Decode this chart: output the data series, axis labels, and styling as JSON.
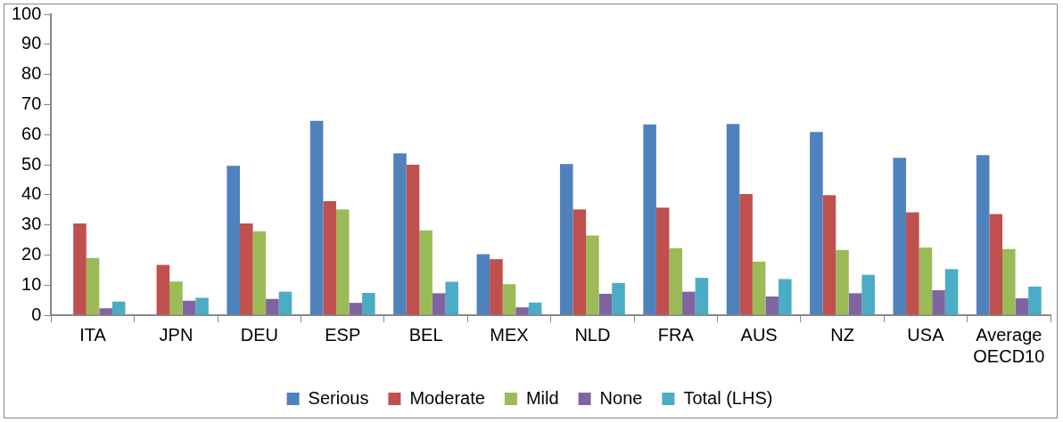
{
  "chart_data": {
    "type": "bar",
    "categories": [
      "ITA",
      "JPN",
      "DEU",
      "ESP",
      "BEL",
      "MEX",
      "NLD",
      "FRA",
      "AUS",
      "NZ",
      "USA",
      "Average OECD10"
    ],
    "series": [
      {
        "name": "Serious",
        "color": "#4f81bd",
        "values": [
          null,
          null,
          49.6,
          64.6,
          53.8,
          20.3,
          50.2,
          63.4,
          63.5,
          60.9,
          52.3,
          53.2
        ]
      },
      {
        "name": "Moderate",
        "color": "#c0504d",
        "values": [
          30.5,
          16.7,
          30.5,
          37.9,
          50.0,
          18.6,
          35.1,
          35.7,
          40.2,
          39.9,
          34.2,
          33.6
        ]
      },
      {
        "name": "Mild",
        "color": "#9bbb59",
        "values": [
          19.0,
          11.2,
          27.9,
          35.1,
          28.2,
          10.3,
          26.5,
          22.3,
          17.8,
          21.7,
          22.5,
          22.0
        ]
      },
      {
        "name": "None",
        "color": "#8064a2",
        "values": [
          2.3,
          4.8,
          5.4,
          4.1,
          7.3,
          2.6,
          7.1,
          7.8,
          6.2,
          7.3,
          8.3,
          5.6
        ]
      },
      {
        "name": "Total (LHS)",
        "color": "#4bacc6",
        "values": [
          4.5,
          5.8,
          7.8,
          7.4,
          11.1,
          4.2,
          10.7,
          12.4,
          12.0,
          13.4,
          15.3,
          9.5
        ]
      }
    ],
    "ylim": [
      0,
      100
    ],
    "yticks": [
      0,
      10,
      20,
      30,
      40,
      50,
      60,
      70,
      80,
      90,
      100
    ],
    "grid": false,
    "legend": "bottom"
  }
}
